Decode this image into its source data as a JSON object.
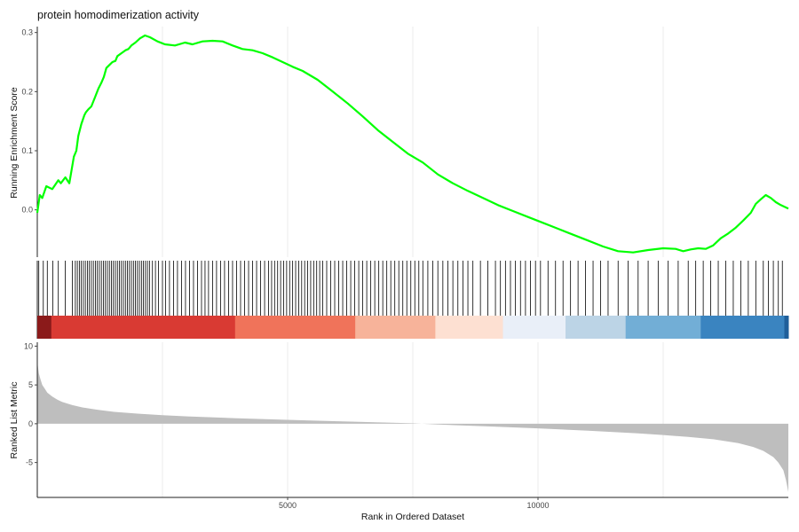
{
  "chart_data": {
    "type": "line",
    "title": "protein homodimerization activity",
    "xlabel": "Rank in Ordered Dataset",
    "xlim": [
      0,
      15000
    ],
    "x_ticks": [
      5000,
      10000
    ],
    "x_grid": [
      2500,
      5000,
      7500,
      10000,
      12500
    ],
    "panels": {
      "running_score": {
        "ylabel": "Running Enrichment Score",
        "ylim": [
          -0.08,
          0.31
        ],
        "y_ticks": [
          0.0,
          0.1,
          0.2,
          0.3
        ],
        "y_tick_labels": [
          "0.0",
          "0.1",
          "0.2",
          "0.3"
        ],
        "line_color": "#00ff00",
        "series": [
          {
            "x": [
              0,
              50,
              100,
              180,
              300,
              420,
              470,
              560,
              640,
              700,
              730,
              780,
              820,
              880,
              940,
              970,
              1020,
              1080,
              1150,
              1220,
              1280,
              1330,
              1380,
              1440,
              1500,
              1560,
              1600,
              1680,
              1760,
              1820,
              1880,
              1960,
              2050,
              2150,
              2250,
              2400,
              2550,
              2750,
              2950,
              3100,
              3300,
              3500,
              3700,
              3900,
              4100,
              4300,
              4500,
              4700,
              4900,
              5100,
              5300,
              5600,
              5900,
              6200,
              6500,
              6800,
              7100,
              7400,
              7700,
              8000,
              8300,
              8600,
              8900,
              9200,
              9500,
              9800,
              10100,
              10400,
              10700,
              11000,
              11300,
              11600,
              11900,
              12200,
              12500,
              12750,
              12900,
              13050,
              13200,
              13350,
              13500,
              13650,
              13800,
              13950,
              14100,
              14250,
              14350,
              14450,
              14550,
              14650,
              14750,
              14850,
              15000
            ],
            "y": [
              -0.005,
              0.025,
              0.02,
              0.04,
              0.035,
              0.05,
              0.045,
              0.055,
              0.045,
              0.075,
              0.09,
              0.1,
              0.125,
              0.145,
              0.16,
              0.165,
              0.17,
              0.175,
              0.19,
              0.205,
              0.215,
              0.225,
              0.24,
              0.245,
              0.25,
              0.252,
              0.26,
              0.265,
              0.27,
              0.272,
              0.278,
              0.283,
              0.29,
              0.295,
              0.292,
              0.285,
              0.28,
              0.278,
              0.283,
              0.28,
              0.285,
              0.286,
              0.285,
              0.278,
              0.272,
              0.27,
              0.265,
              0.258,
              0.25,
              0.242,
              0.235,
              0.22,
              0.2,
              0.18,
              0.158,
              0.135,
              0.115,
              0.095,
              0.08,
              0.06,
              0.045,
              0.032,
              0.02,
              0.008,
              -0.002,
              -0.012,
              -0.022,
              -0.032,
              -0.042,
              -0.052,
              -0.062,
              -0.07,
              -0.072,
              -0.068,
              -0.065,
              -0.066,
              -0.07,
              -0.067,
              -0.065,
              -0.066,
              -0.06,
              -0.048,
              -0.04,
              -0.03,
              -0.018,
              -0.005,
              0.01,
              0.018,
              0.025,
              0.02,
              0.013,
              0.008,
              0.002
            ]
          }
        ]
      },
      "hit_ticks": {
        "ranks": [
          30,
          120,
          200,
          310,
          420,
          560,
          700,
          760,
          800,
          840,
          880,
          920,
          960,
          1000,
          1040,
          1080,
          1120,
          1160,
          1200,
          1240,
          1280,
          1320,
          1360,
          1400,
          1440,
          1480,
          1520,
          1560,
          1600,
          1640,
          1680,
          1720,
          1760,
          1800,
          1840,
          1880,
          1920,
          1960,
          2000,
          2040,
          2080,
          2120,
          2160,
          2200,
          2240,
          2300,
          2360,
          2420,
          2500,
          2560,
          2640,
          2720,
          2800,
          2880,
          2960,
          3040,
          3120,
          3200,
          3280,
          3350,
          3420,
          3500,
          3580,
          3660,
          3740,
          3820,
          3900,
          3980,
          4060,
          4140,
          4220,
          4300,
          4380,
          4460,
          4540,
          4620,
          4680,
          4740,
          4800,
          4860,
          4920,
          4980,
          5040,
          5100,
          5160,
          5220,
          5280,
          5340,
          5400,
          5460,
          5520,
          5580,
          5640,
          5700,
          5780,
          5860,
          5940,
          6020,
          6100,
          6180,
          6260,
          6340,
          6420,
          6500,
          6580,
          6660,
          6740,
          6820,
          6900,
          6980,
          7060,
          7140,
          7220,
          7300,
          7380,
          7460,
          7540,
          7620,
          7700,
          7800,
          7900,
          8000,
          8100,
          8200,
          8300,
          8400,
          8500,
          8600,
          8700,
          8850,
          9000,
          9150,
          9250,
          9350,
          9450,
          9550,
          9650,
          9750,
          9850,
          9950,
          10050,
          10200,
          10350,
          10500,
          10650,
          10800,
          10950,
          11100,
          11250,
          11400,
          11600,
          11800,
          12000,
          12200,
          12400,
          12600,
          12800,
          13000,
          13150,
          13300,
          13450,
          13600,
          13750,
          13900,
          14050,
          14200,
          14350,
          14500,
          14600,
          14700,
          14800,
          14880
        ]
      },
      "color_band": {
        "segments": [
          {
            "from": 0,
            "to": 280,
            "color": "#8b1a1a"
          },
          {
            "from": 280,
            "to": 3950,
            "color": "#d93a33"
          },
          {
            "from": 3950,
            "to": 6350,
            "color": "#f0735a"
          },
          {
            "from": 6350,
            "to": 7950,
            "color": "#f7b39a"
          },
          {
            "from": 7950,
            "to": 9300,
            "color": "#fde0d2"
          },
          {
            "from": 9300,
            "to": 10550,
            "color": "#e9eff8"
          },
          {
            "from": 10550,
            "to": 11750,
            "color": "#bcd4e6"
          },
          {
            "from": 11750,
            "to": 13250,
            "color": "#72aed6"
          },
          {
            "from": 13250,
            "to": 14920,
            "color": "#3a84c0"
          },
          {
            "from": 14920,
            "to": 15000,
            "color": "#1f5f9a"
          }
        ]
      },
      "ranked_metric": {
        "ylabel": "Ranked List Metric",
        "ylim": [
          -9.5,
          10.5
        ],
        "y_ticks": [
          10,
          5,
          0,
          -5
        ],
        "y_tick_labels": [
          "10",
          "5",
          "0",
          "-5"
        ],
        "fill_color": "#bebebe",
        "series": [
          {
            "x": [
              0,
              30,
              60,
              100,
              150,
              200,
              300,
              400,
              500,
              700,
              900,
              1200,
              1500,
              2000,
              2500,
              3000,
              4000,
              5000,
              6000,
              7000,
              7500,
              8000,
              9000,
              10000,
              11000,
              12000,
              12500,
              13000,
              13500,
              14000,
              14300,
              14500,
              14700,
              14800,
              14900,
              14950,
              15000
            ],
            "y": [
              8.0,
              6.5,
              5.8,
              5.0,
              4.5,
              4.0,
              3.5,
              3.1,
              2.8,
              2.4,
              2.1,
              1.8,
              1.55,
              1.3,
              1.1,
              0.95,
              0.7,
              0.5,
              0.32,
              0.15,
              0.05,
              -0.1,
              -0.35,
              -0.6,
              -0.9,
              -1.25,
              -1.45,
              -1.7,
              -2.0,
              -2.5,
              -3.0,
              -3.5,
              -4.3,
              -5.0,
              -6.0,
              -7.2,
              -8.8
            ]
          }
        ]
      }
    }
  }
}
